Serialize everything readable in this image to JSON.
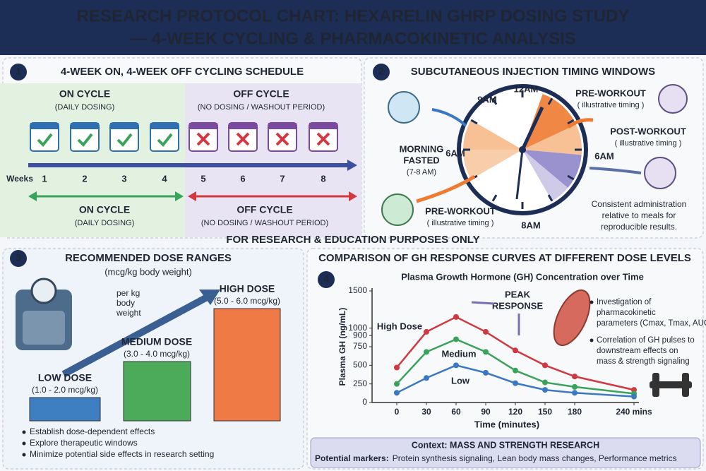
{
  "header": {
    "title_lines": [
      "RESEARCH PROTOCOL CHART: HEXARELIN GHRP DOSING STUDY",
      "— 4-WEEK CYCLING & PHARMACOKINETIC ANALYSIS"
    ]
  },
  "panel1": {
    "number": "1",
    "title": "4-WEEK ON, 4-WEEK OFF CYCLING SCHEDULE",
    "top_on": {
      "label": "ON CYCLE",
      "sub": "(DAILY DOSING)"
    },
    "top_off": {
      "label": "OFF CYCLE",
      "sub": "(NO DOSING / WASHOUT PERIOD)"
    },
    "axis_label": "Weeks",
    "weeks": [
      1,
      2,
      3,
      4,
      5,
      6,
      7,
      8
    ],
    "bottom_on": {
      "label": "ON CYCLE",
      "sub": "(DAILY DOSING)"
    },
    "bottom_off": {
      "label": "OFF CYCLE",
      "sub": "(NO DOSING / WASHOUT PERIOD)"
    }
  },
  "panel2": {
    "number": "2",
    "title": "SUBCUTANEOUS INJECTION TIMING WINDOWS",
    "clock_labels": [
      "12AM",
      "9AM",
      "6AM",
      "6AM",
      "8AM"
    ],
    "annotations": [
      {
        "lines": [
          "PRE-WORKOUT",
          "( illustrative timing )"
        ]
      },
      {
        "lines": [
          "POST-WORKOUT",
          "( illustrative timing )"
        ]
      },
      {
        "lines": [
          "MORNING",
          "FASTED",
          "(7-8 AM)"
        ]
      },
      {
        "lines": [
          "PRE-WORKOUT",
          "( illustrative timing )"
        ]
      }
    ],
    "note": [
      "Consistent administration",
      "relative to meals for",
      "reproducible results."
    ]
  },
  "banner": "FOR RESEARCH & EDUCATION PURPOSES ONLY",
  "panel3": {
    "number": "3",
    "title": "RECOMMENDED DOSE RANGES",
    "subtitle": "(mcg/kg body weight)",
    "scale_note": [
      "per kg",
      "body",
      "weight"
    ],
    "doses": [
      {
        "label": "LOW DOSE",
        "range": "(1.0 - 2.0 mcg/kg)"
      },
      {
        "label": "MEDIUM DOSE",
        "range": "(3.0 - 4.0 mcg/kg)"
      },
      {
        "label": "HIGH DOSE",
        "range": "(5.0 - 6.0 mcg/kg)"
      }
    ],
    "bullets": [
      "Establish dose-dependent effects",
      "Explore therapeutic windows",
      "Minimize potential side effects in research setting"
    ]
  },
  "panel4": {
    "number": "4",
    "title": "COMPARISON OF GH RESPONSE CURVES AT DIFFERENT DOSE LEVELS",
    "peak_label": [
      "PEAK",
      "RESPONSE"
    ],
    "notes": [
      [
        "Investigation of",
        "pharmacokinetic",
        "parameters (Cmax, Tmax, AUC)"
      ],
      [
        "Correlation of GH pulses to",
        "downstream effects on",
        "mass & strength signaling"
      ]
    ],
    "context": {
      "title": "Context: MASS AND STRENGTH RESEARCH",
      "markers_label": "Potential markers:",
      "markers": "Protein synthesis signaling, Lean body mass changes, Performance metrics"
    }
  },
  "chart_data": {
    "type": "line",
    "title": "Plasma Growth Hormone (GH) Concentration over Time",
    "x_label": "Time (minutes)",
    "y_label": "Plasma GH (ng/mL)",
    "x": [
      0,
      30,
      60,
      90,
      120,
      150,
      180,
      240
    ],
    "series": [
      {
        "name": "High Dose",
        "color": "#d2383f",
        "values": [
          470,
          950,
          1150,
          950,
          700,
          500,
          350,
          170
        ]
      },
      {
        "name": "Medium",
        "color": "#3aa35a",
        "values": [
          250,
          680,
          850,
          680,
          430,
          270,
          210,
          120
        ]
      },
      {
        "name": "Low",
        "color": "#3b78c4",
        "values": [
          130,
          330,
          500,
          400,
          260,
          170,
          130,
          80
        ]
      }
    ],
    "xlim": [
      -25,
      245
    ],
    "xticks": [
      0,
      30,
      60,
      90,
      120,
      150,
      180,
      {
        "value": 240,
        "label": "240 mins"
      }
    ],
    "ylim": [
      0,
      1500
    ],
    "yticks": [
      0,
      250,
      500,
      750,
      900,
      1000,
      1500
    ]
  }
}
